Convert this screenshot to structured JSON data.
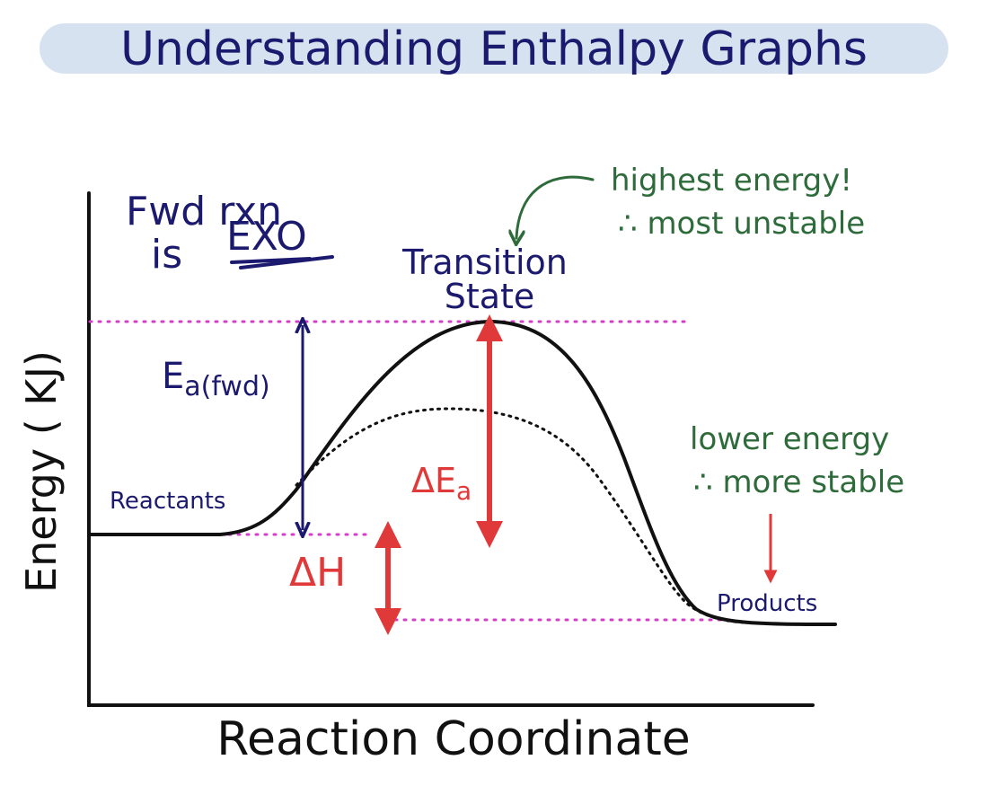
{
  "title": "Understanding Enthalpy Graphs",
  "y_axis_label": "Energy ( KJ)",
  "x_axis_label": "Reaction Coordinate",
  "note_forward": {
    "line1": "Fwd rxn",
    "line2_prefix": "is",
    "line2_emphasis": "EXO"
  },
  "transition_state": {
    "line1": "Transition",
    "line2": "State"
  },
  "note_highest": {
    "line1": "highest energy!",
    "line2": "∴ most unstable"
  },
  "note_lower": {
    "line1": "lower energy",
    "line2": "∴ more stable"
  },
  "reactants_label": "Reactants",
  "products_label": "Products",
  "ea_forward_label": {
    "main": "E",
    "sub": "a(fwd)"
  },
  "delta_ea_label": {
    "main": "ΔE",
    "sub": "a"
  },
  "delta_h_label": "ΔH",
  "colors": {
    "title_bg": "#d6e2f0",
    "navy": "#1c1a6e",
    "red": "#e0393a",
    "green": "#2e6b3a",
    "magenta": "#d63ec8",
    "black": "#111111"
  }
}
